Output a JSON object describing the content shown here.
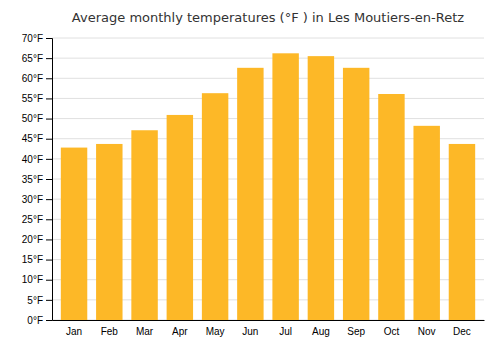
{
  "chart_data": {
    "type": "bar",
    "title": "Average monthly temperatures (°F ) in Les Moutiers-en-Retz",
    "categories": [
      "Jan",
      "Feb",
      "Mar",
      "Apr",
      "May",
      "Jun",
      "Jul",
      "Aug",
      "Sep",
      "Oct",
      "Nov",
      "Dec"
    ],
    "values": [
      42.8,
      43.7,
      47.1,
      50.9,
      56.3,
      62.6,
      66.2,
      65.5,
      62.6,
      56.1,
      48.2,
      43.7
    ],
    "color": "#FDB827",
    "ylim": [
      0,
      70
    ],
    "yticks": [
      {
        "value": 0,
        "label": "0°F"
      },
      {
        "value": 5,
        "label": "5°F"
      },
      {
        "value": 10,
        "label": "10°F"
      },
      {
        "value": 15,
        "label": "15°F"
      },
      {
        "value": 20,
        "label": "20°F"
      },
      {
        "value": 25,
        "label": "25°F"
      },
      {
        "value": 30,
        "label": "30°F"
      },
      {
        "value": 35,
        "label": "35°F"
      },
      {
        "value": 40,
        "label": "40°F"
      },
      {
        "value": 45,
        "label": "45°F"
      },
      {
        "value": 50,
        "label": "50°F"
      },
      {
        "value": 55,
        "label": "55°F"
      },
      {
        "value": 60,
        "label": "60°F"
      },
      {
        "value": 65,
        "label": "65°F"
      },
      {
        "value": 70,
        "label": "70°F"
      }
    ],
    "grid": true
  }
}
